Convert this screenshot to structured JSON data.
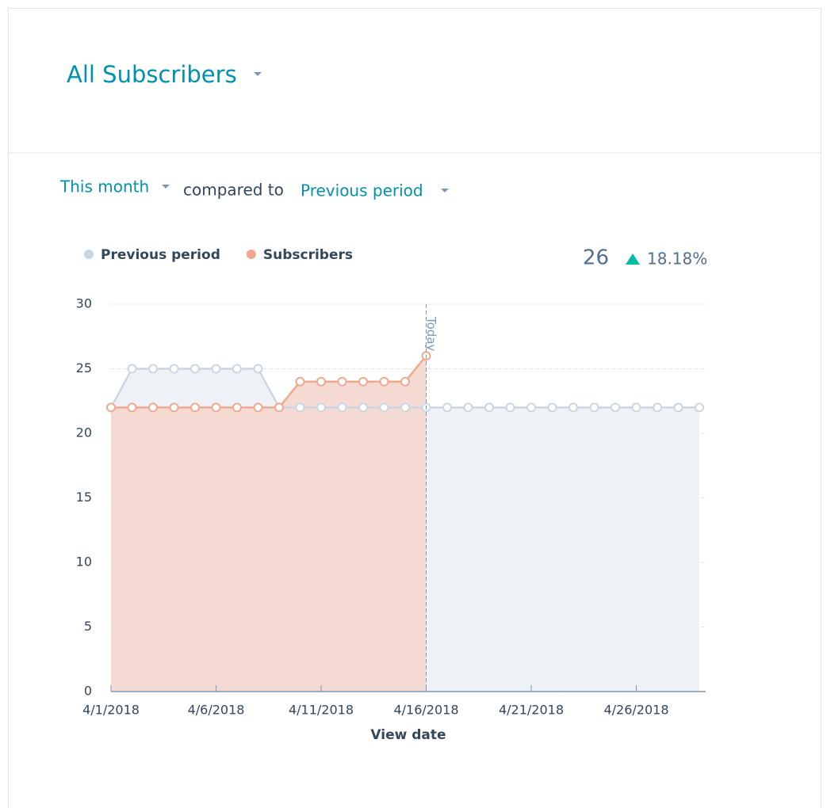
{
  "header": {
    "title": "All Subscribers"
  },
  "filters": {
    "period": "This month",
    "compared_label": "compared to",
    "comparison": "Previous period"
  },
  "summary": {
    "total": 26,
    "change": "18.18%"
  },
  "chart_data": {
    "type": "line",
    "x": [
      "4/1/2018",
      "4/2/2018",
      "4/3/2018",
      "4/4/2018",
      "4/5/2018",
      "4/6/2018",
      "4/7/2018",
      "4/8/2018",
      "4/9/2018",
      "4/10/2018",
      "4/11/2018",
      "4/12/2018",
      "4/13/2018",
      "4/14/2018",
      "4/15/2018",
      "4/16/2018",
      "4/17/2018",
      "4/18/2018",
      "4/19/2018",
      "4/20/2018",
      "4/21/2018",
      "4/22/2018",
      "4/23/2018",
      "4/24/2018",
      "4/25/2018",
      "4/26/2018",
      "4/27/2018",
      "4/28/2018",
      "4/29/2018"
    ],
    "xticks": [
      "4/1/2018",
      "4/6/2018",
      "4/11/2018",
      "4/16/2018",
      "4/21/2018",
      "4/26/2018"
    ],
    "xlabel": "View date",
    "ylim": [
      0,
      30
    ],
    "yticks": [
      0,
      5,
      10,
      15,
      20,
      25,
      30
    ],
    "grid": true,
    "annotation": {
      "x": "4/16/2018",
      "text": "Today"
    },
    "series": [
      {
        "name": "Previous period",
        "color": "#cbd6e2",
        "fill": "#eef2f6",
        "values": [
          22,
          25,
          25,
          25,
          25,
          25,
          25,
          25,
          22,
          22,
          22,
          22,
          22,
          22,
          22,
          22,
          22,
          22,
          22,
          22,
          22,
          22,
          22,
          22,
          22,
          22,
          22,
          22,
          22
        ]
      },
      {
        "name": "Subscribers",
        "color": "#f2a88f",
        "fill": "#f5dad3",
        "values": [
          22,
          22,
          22,
          22,
          22,
          22,
          22,
          22,
          22,
          24,
          24,
          24,
          24,
          24,
          24,
          26,
          null,
          null,
          null,
          null,
          null,
          null,
          null,
          null,
          null,
          null,
          null,
          null,
          null
        ]
      }
    ]
  }
}
